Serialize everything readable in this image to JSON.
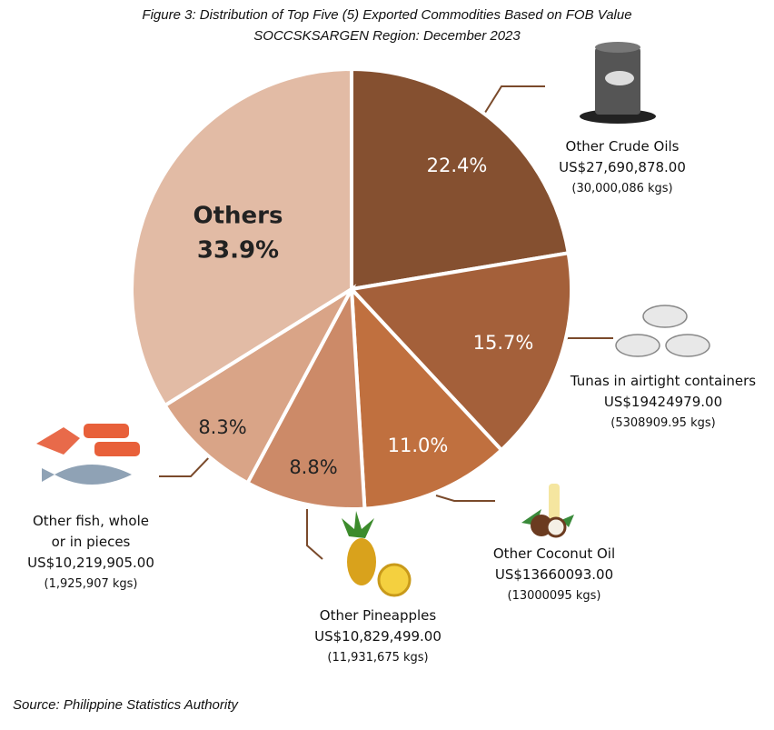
{
  "chart_data": {
    "type": "pie",
    "title": "Figure 3: Distribution of Top Five (5) Exported Commodities Based on FOB Value",
    "subtitle": "SOCCSKSARGEN Region: December 2023",
    "categories": [
      "Other Crude Oils",
      "Tunas in airtight containers",
      "Other Coconut Oil",
      "Other Pineapples",
      "Other fish, whole or in pieces",
      "Others"
    ],
    "values": [
      22.4,
      15.7,
      11.0,
      8.8,
      8.3,
      33.9
    ],
    "value_labels": [
      "22.4%",
      "15.7%",
      "11.0%",
      "8.8%",
      "8.3%",
      "33.9%"
    ],
    "fob_values": [
      "US$27,690,878.00",
      "US$19424979.00",
      "US$13660093.00",
      "US$10,829,499.00",
      "US$10,219,905.00",
      null
    ],
    "weights": [
      "(30,000,086 kgs)",
      "(5308909.95 kgs)",
      "(13000095 kgs)",
      "(11,931,675 kgs)",
      "(1,925,907 kgs)",
      null
    ],
    "colors": [
      "#855030",
      "#a4603a",
      "#c0703f",
      "#cc8a68",
      "#d9a487",
      "#e2bba5"
    ],
    "source": "Source: Philippine Statistics Authority"
  }
}
